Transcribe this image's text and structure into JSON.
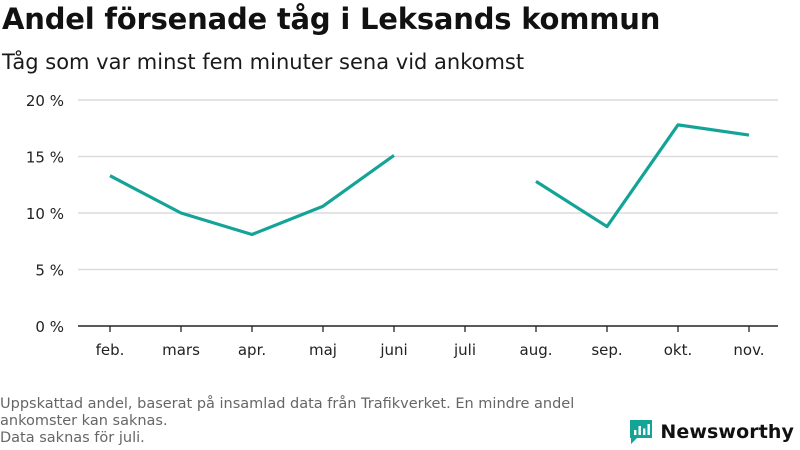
{
  "title": "Andel försenade tåg i Leksands kommun",
  "subtitle": "Tåg som var minst fem minuter sena vid ankomst",
  "chart_data": {
    "type": "line",
    "categories": [
      "feb.",
      "mars",
      "apr.",
      "maj",
      "juni",
      "juli",
      "aug.",
      "sep.",
      "okt.",
      "nov."
    ],
    "series": [
      {
        "values": [
          13.3,
          10.0,
          8.1,
          10.6,
          15.1,
          null,
          12.8,
          8.8,
          17.8,
          16.9
        ]
      }
    ],
    "y_ticks": [
      "0 %",
      "5 %",
      "10 %",
      "15 %",
      "20 %"
    ],
    "ylim": [
      0,
      20
    ],
    "grid": true,
    "line_color": "#14a497"
  },
  "footnote": {
    "line1": "Uppskattad andel, baserat på insamlad data från Trafikverket. En mindre andel",
    "line2": "ankomster kan saknas.",
    "line3": "Data saknas för juli."
  },
  "brand": {
    "name": "Newsworthy",
    "icon": "bar-chart-logo-icon",
    "color": "#14a497"
  }
}
